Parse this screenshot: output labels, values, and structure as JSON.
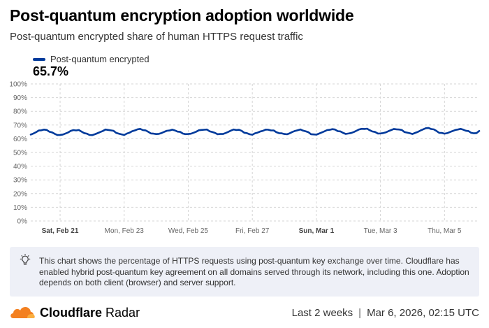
{
  "header": {
    "title": "Post-quantum encryption adoption worldwide",
    "subtitle": "Post-quantum encrypted share of human HTTPS request traffic"
  },
  "legend": {
    "series_name": "Post-quantum encrypted",
    "current_value": "65.7%"
  },
  "colors": {
    "series": "#003a9b",
    "grid": "#d5d5d5",
    "note_background": "#eef0f7",
    "brand_orange": "#f38020"
  },
  "chart_data": {
    "type": "line",
    "title": "Post-quantum encryption adoption worldwide",
    "subtitle": "Post-quantum encrypted share of human HTTPS request traffic",
    "xlabel": "",
    "ylabel": "",
    "ylim": [
      0,
      100
    ],
    "y_tick_labels": [
      "0%",
      "10%",
      "20%",
      "30%",
      "40%",
      "50%",
      "60%",
      "70%",
      "80%",
      "90%",
      "100%"
    ],
    "x_tick_labels": [
      "Sat, Feb 21",
      "Mon, Feb 23",
      "Wed, Feb 25",
      "Fri, Feb 27",
      "Sun, Mar 1",
      "Tue, Mar 3",
      "Thu, Mar 5"
    ],
    "x_tick_bold": [
      true,
      false,
      false,
      false,
      true,
      false,
      false
    ],
    "x_start": "2026-02-20T02:00",
    "x_end": "2026-03-06T02:00",
    "x_ticks": [
      "2026-02-21",
      "2026-02-23",
      "2026-02-25",
      "2026-02-27",
      "2026-03-01",
      "2026-03-03",
      "2026-03-05"
    ],
    "grid": true,
    "legend": "top-left",
    "series": [
      {
        "name": "Post-quantum encrypted",
        "daily_min": [
          62.7,
          62.7,
          62.9,
          63.4,
          63.3,
          63.4,
          63.1,
          63.6,
          62.9,
          63.6,
          63.9,
          63.7,
          63.8,
          63.9
        ],
        "daily_max": [
          66.6,
          66.4,
          66.6,
          67.0,
          66.4,
          66.7,
          66.7,
          66.6,
          66.5,
          66.9,
          67.4,
          67.1,
          67.8,
          67.0
        ],
        "last_value": 65.7
      }
    ]
  },
  "note": {
    "icon": "lightbulb-icon",
    "text": "This chart shows the percentage of HTTPS requests using post-quantum key exchange over time. Cloudflare has enabled hybrid post-quantum key agreement on all domains served through its network, including this one. Adoption depends on both client (browser) and server support."
  },
  "footer": {
    "brand_name": "Cloudflare",
    "brand_product": "Radar",
    "range": "Last 2 weeks",
    "separator": "|",
    "timestamp": "Mar 6, 2026, 02:15 UTC"
  }
}
